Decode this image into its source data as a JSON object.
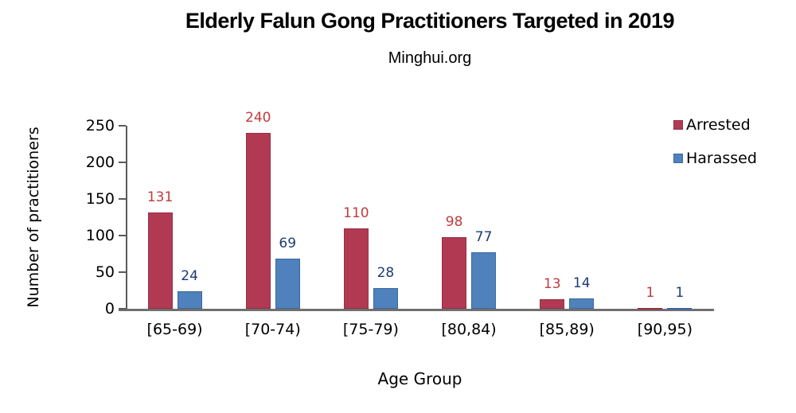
{
  "chart_data": {
    "type": "bar",
    "title": "Elderly Falun Gong Practitioners Targeted in 2019",
    "subtitle": "Minghui.org",
    "xlabel": "Age Group",
    "ylabel": "Number of practitioners",
    "categories": [
      "[65-69)",
      "[70-74)",
      "[75-79)",
      "[80,84)",
      "[85,89)",
      "[90,95)"
    ],
    "series": [
      {
        "name": "Arrested",
        "values": [
          131,
          240,
          110,
          98,
          13,
          1
        ],
        "bar_color": "#B13A52",
        "bar_border_color": "#963044",
        "label_color": "#C23B3E"
      },
      {
        "name": "Harassed",
        "values": [
          24,
          69,
          28,
          77,
          14,
          1
        ],
        "bar_color": "#4F81BD",
        "bar_border_color": "#3A6A9E",
        "label_color": "#1F3B73"
      }
    ],
    "yticks": [
      0,
      50,
      100,
      150,
      200,
      250
    ],
    "ylim": [
      0,
      250
    ],
    "grid": false,
    "legend_position": "top-right"
  },
  "colors": {
    "background": "#FFFFFF",
    "axis_line": "#5A5A5A",
    "baseline": "#6F6F6F",
    "text": "#000000"
  }
}
